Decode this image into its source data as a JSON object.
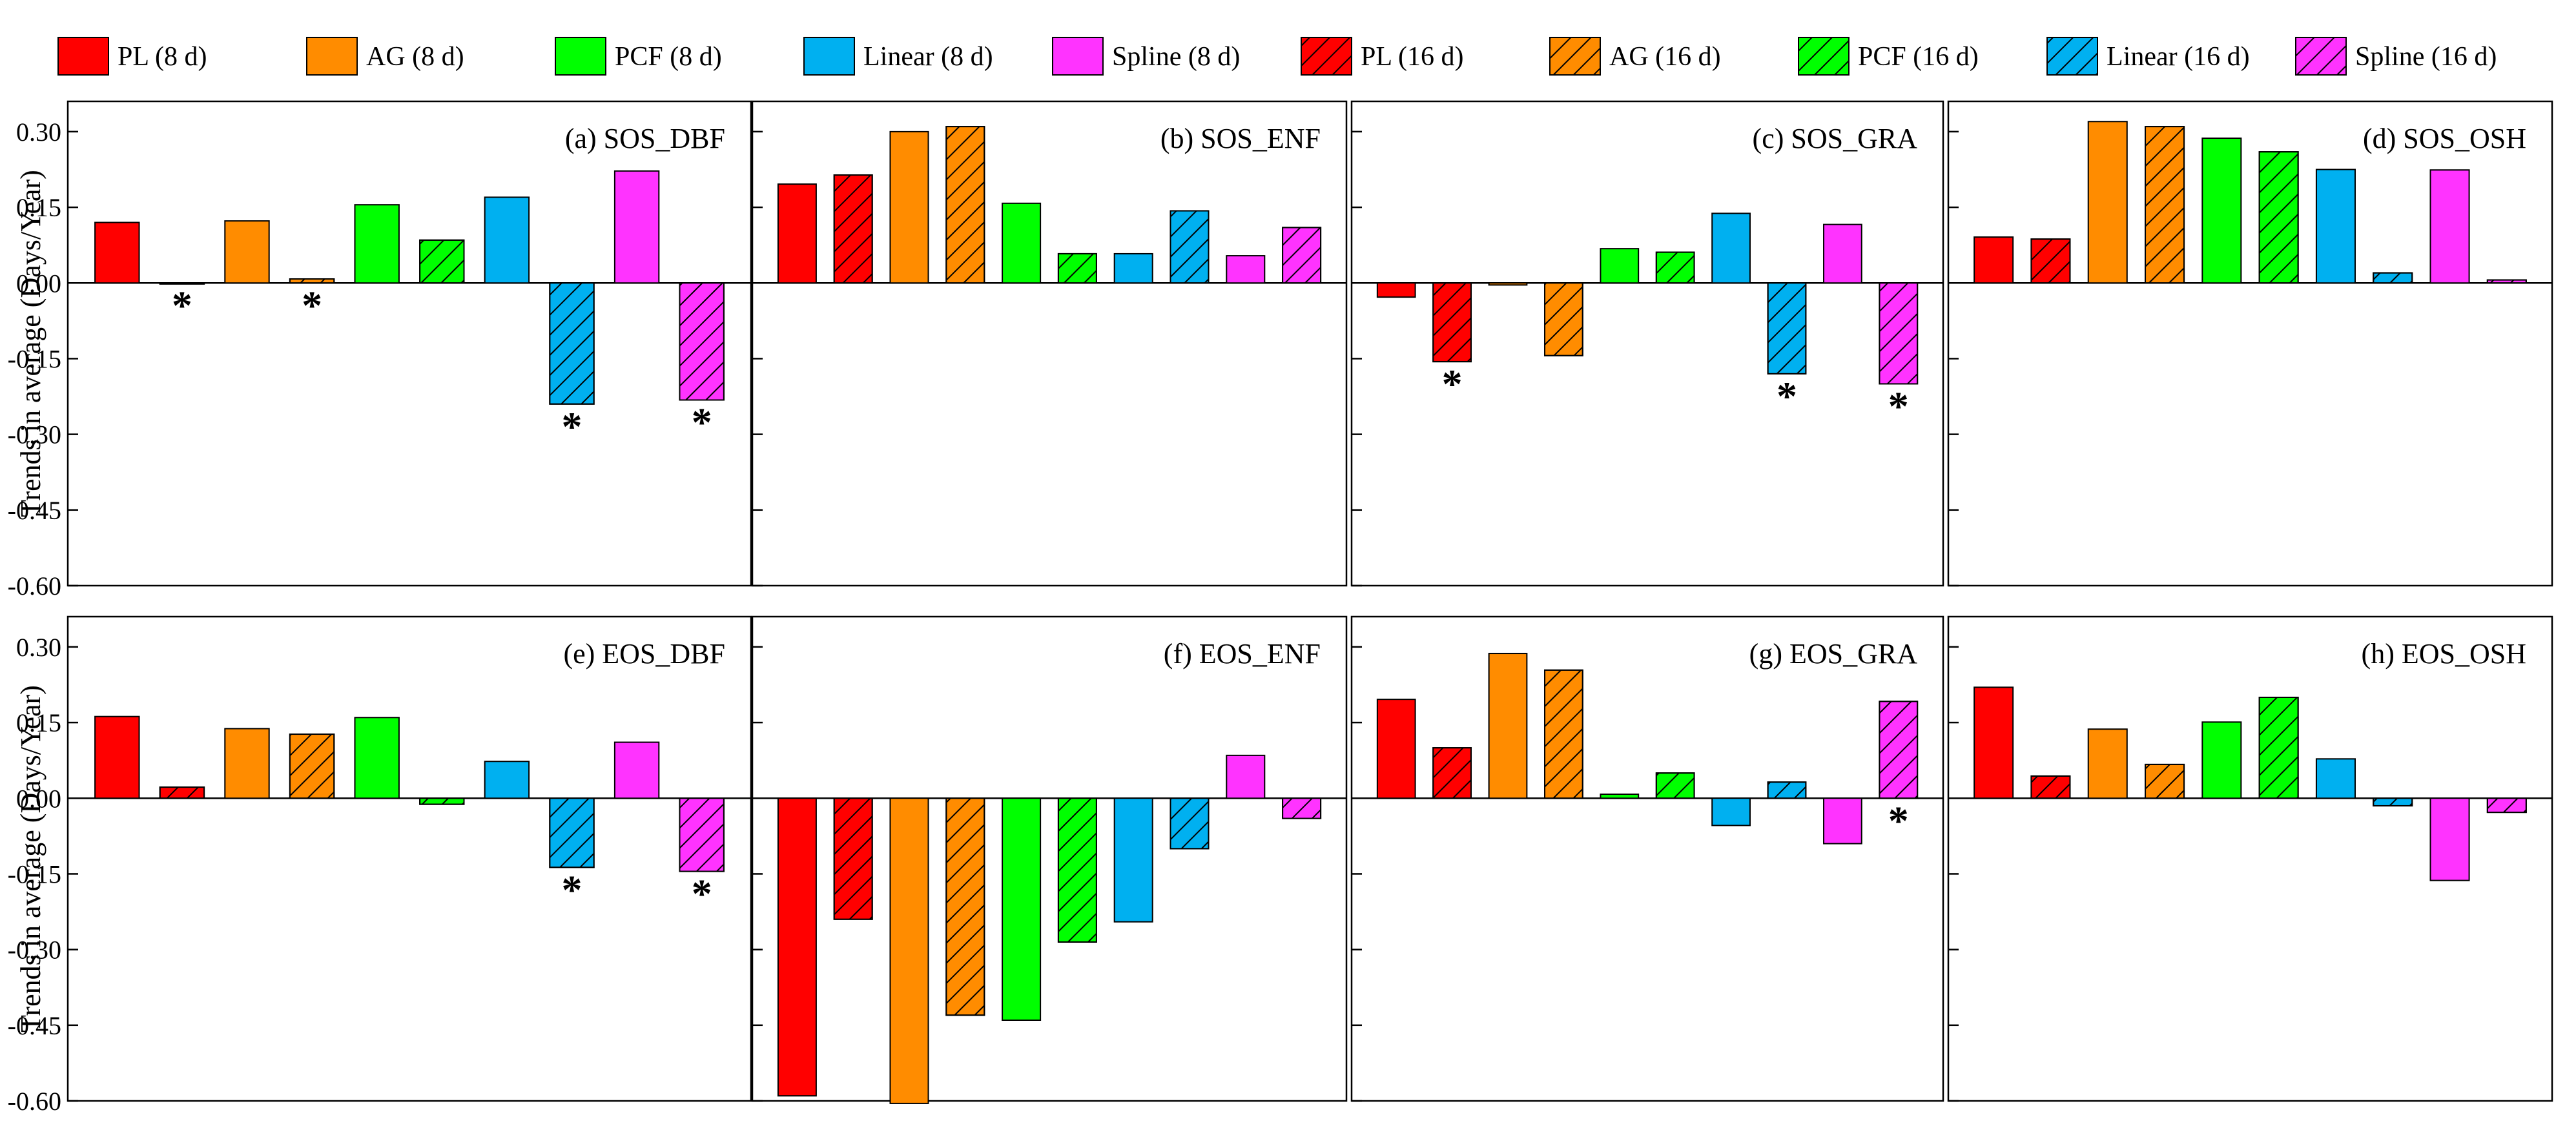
{
  "chart_data": {
    "type": "bar",
    "ylabel": "Trends in average (Days/Year)",
    "ylim": [
      -0.6,
      0.36
    ],
    "yticks": [
      0.3,
      0.15,
      0.0,
      -0.15,
      -0.3,
      -0.45,
      -0.6
    ],
    "ytick_labels": [
      "0.30",
      "0.15",
      "0.00",
      "-0.15",
      "-0.30",
      "-0.45",
      "-0.60"
    ],
    "grid": false,
    "legend": {
      "placement": "top",
      "entries": [
        {
          "label": "PL (8 d)",
          "color": "#ff0000",
          "hatched": false
        },
        {
          "label": "AG (8 d)",
          "color": "#ff8c00",
          "hatched": false
        },
        {
          "label": "PCF (8 d)",
          "color": "#00ff00",
          "hatched": false
        },
        {
          "label": "Linear (8 d)",
          "color": "#00b0f0",
          "hatched": false
        },
        {
          "label": "Spline (8 d)",
          "color": "#ff33ff",
          "hatched": false
        },
        {
          "label": "PL (16 d)",
          "color": "#ff0000",
          "hatched": true
        },
        {
          "label": "AG (16 d)",
          "color": "#ff8c00",
          "hatched": true
        },
        {
          "label": "PCF (16 d)",
          "color": "#00ff00",
          "hatched": true
        },
        {
          "label": "Linear (16 d)",
          "color": "#00b0f0",
          "hatched": true
        },
        {
          "label": "Spline (16 d)",
          "color": "#ff33ff",
          "hatched": true
        }
      ]
    },
    "series_order": [
      "PL (8 d)",
      "PL (16 d)",
      "AG (8 d)",
      "AG (16 d)",
      "PCF (8 d)",
      "PCF (16 d)",
      "Linear (8 d)",
      "Linear (16 d)",
      "Spline (8 d)",
      "Spline (16 d)"
    ],
    "panels": [
      {
        "title": "(a) SOS_DBF",
        "values": [
          0.12,
          0.0,
          0.123,
          0.008,
          0.155,
          0.085,
          0.17,
          -0.24,
          0.222,
          -0.232
        ],
        "significant": [
          false,
          true,
          false,
          true,
          false,
          false,
          false,
          true,
          false,
          true
        ]
      },
      {
        "title": "(b) SOS_ENF",
        "values": [
          0.196,
          0.214,
          0.3,
          0.31,
          0.158,
          0.058,
          0.058,
          0.143,
          0.054,
          0.11
        ],
        "significant": [
          false,
          false,
          false,
          false,
          false,
          false,
          false,
          false,
          false,
          false
        ]
      },
      {
        "title": "(c) SOS_GRA",
        "values": [
          -0.028,
          -0.156,
          -0.004,
          -0.144,
          0.068,
          0.061,
          0.138,
          -0.18,
          0.116,
          -0.2
        ],
        "significant": [
          false,
          true,
          false,
          false,
          false,
          false,
          false,
          true,
          false,
          true
        ]
      },
      {
        "title": "(d) SOS_OSH",
        "values": [
          0.091,
          0.087,
          0.32,
          0.31,
          0.287,
          0.26,
          0.225,
          0.02,
          0.224,
          0.006
        ],
        "significant": [
          false,
          false,
          false,
          false,
          false,
          false,
          false,
          false,
          false,
          false
        ]
      },
      {
        "title": "(e) EOS_DBF",
        "values": [
          0.162,
          0.022,
          0.138,
          0.127,
          0.16,
          -0.012,
          0.073,
          -0.137,
          0.111,
          -0.145
        ],
        "significant": [
          false,
          false,
          false,
          false,
          false,
          false,
          false,
          true,
          false,
          true
        ]
      },
      {
        "title": "(f) EOS_ENF",
        "values": [
          -0.59,
          -0.24,
          -0.605,
          -0.43,
          -0.44,
          -0.285,
          -0.245,
          -0.1,
          0.085,
          -0.04
        ],
        "significant": [
          false,
          false,
          false,
          false,
          false,
          false,
          false,
          false,
          false,
          false
        ]
      },
      {
        "title": "(g) EOS_GRA",
        "values": [
          0.196,
          0.1,
          0.287,
          0.254,
          0.008,
          0.05,
          -0.054,
          0.032,
          -0.09,
          0.192
        ],
        "significant": [
          false,
          false,
          false,
          false,
          false,
          false,
          false,
          false,
          false,
          true
        ]
      },
      {
        "title": "(h) EOS_OSH",
        "values": [
          0.22,
          0.044,
          0.137,
          0.067,
          0.151,
          0.2,
          0.078,
          -0.015,
          -0.163,
          -0.028
        ],
        "significant": [
          false,
          false,
          false,
          false,
          false,
          false,
          false,
          false,
          false,
          false
        ]
      }
    ],
    "significance_marker": "*"
  }
}
